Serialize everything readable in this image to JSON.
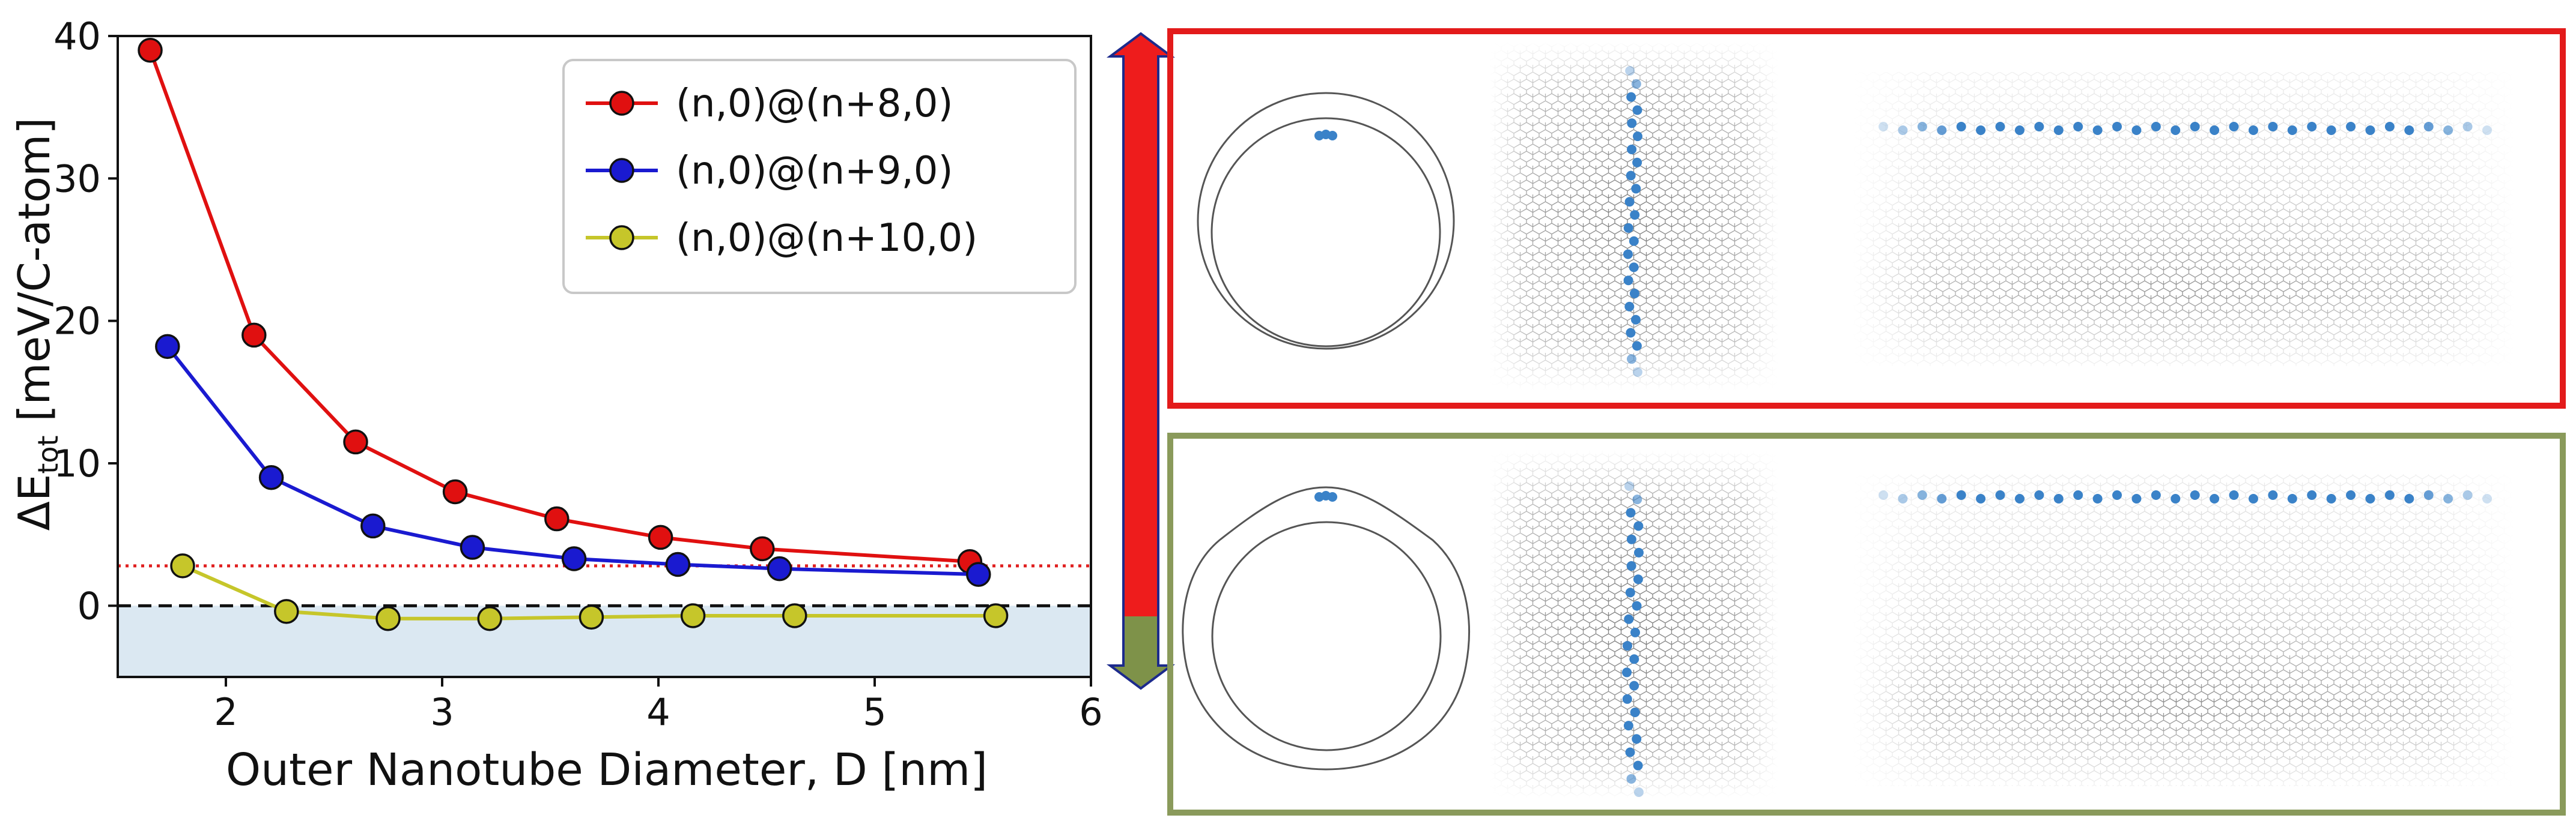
{
  "chart_data": {
    "type": "line",
    "xlabel": "Outer Nanotube Diameter, D [nm]",
    "ylabel": "ΔE",
    "ylabel_sub": "tot",
    "ylabel_unit": " [meV/C-atom]",
    "xlim": [
      1.5,
      6.0
    ],
    "ylim": [
      -5,
      40
    ],
    "xticks": [
      2,
      3,
      4,
      5,
      6
    ],
    "yticks": [
      0,
      10,
      20,
      30,
      40
    ],
    "grid": false,
    "legend_position": "top-right",
    "reference_lines": [
      {
        "y": 0,
        "style": "dashed",
        "color": "#111111"
      },
      {
        "y": 2.8,
        "style": "dotted",
        "color": "#e02020"
      }
    ],
    "shaded_region": {
      "y_from": -5,
      "y_to": 0,
      "color": "#dbe8f2"
    },
    "series": [
      {
        "name": "(n,0)@(n+8,0)",
        "color": "#e01010",
        "x": [
          1.65,
          2.13,
          2.6,
          3.06,
          3.53,
          4.01,
          4.48,
          5.44
        ],
        "y": [
          39.0,
          19.0,
          11.5,
          8.0,
          6.1,
          4.8,
          4.0,
          3.1
        ]
      },
      {
        "name": "(n,0)@(n+9,0)",
        "color": "#1a1ad0",
        "x": [
          1.73,
          2.21,
          2.68,
          3.14,
          3.61,
          4.09,
          4.56,
          5.48
        ],
        "y": [
          18.2,
          9.0,
          5.6,
          4.1,
          3.3,
          2.9,
          2.6,
          2.2
        ]
      },
      {
        "name": "(n,0)@(n+10,0)",
        "color": "#c6c62a",
        "x": [
          1.8,
          2.28,
          2.75,
          3.22,
          3.69,
          4.16,
          4.63,
          5.56
        ],
        "y": [
          2.8,
          -0.4,
          -0.9,
          -0.9,
          -0.8,
          -0.7,
          -0.7,
          -0.7
        ]
      }
    ]
  },
  "arrow": {
    "top_color": "#ee1c1c",
    "bottom_color": "#7e9249",
    "outline": "#1c2a8c"
  },
  "panels": [
    {
      "border_color": "#e31b1b"
    },
    {
      "border_color": "#8a9a5b"
    }
  ],
  "structure_colors": {
    "lattice": "#333333",
    "atoms": "#3a82c8"
  }
}
